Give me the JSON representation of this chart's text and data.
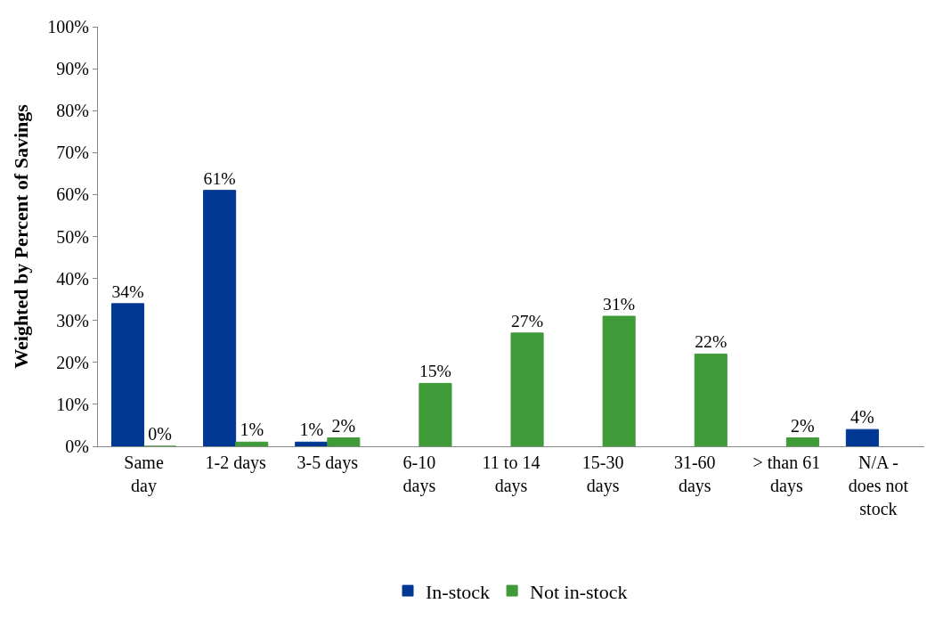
{
  "chart_data": {
    "type": "bar",
    "ylabel": "Weighted by Percent of Savings",
    "categories": [
      "Same\nday",
      "1-2 days",
      "3-5 days",
      "6-10\ndays",
      "11 to 14\ndays",
      "15-30\ndays",
      "31-60\ndays",
      "> than 61\ndays",
      "N/A -\ndoes not\nstock"
    ],
    "series": [
      {
        "name": "In-stock",
        "color": "#003893",
        "values": [
          34,
          61,
          1,
          null,
          null,
          null,
          null,
          null,
          4
        ],
        "value_labels": [
          "34%",
          "61%",
          "1%",
          null,
          null,
          null,
          null,
          null,
          "4%"
        ]
      },
      {
        "name": "Not in-stock",
        "color": "#3f9b37",
        "values": [
          0,
          1,
          2,
          15,
          27,
          31,
          22,
          2,
          null
        ],
        "value_labels": [
          "0%",
          "1%",
          "2%",
          "15%",
          "27%",
          "31%",
          "22%",
          "2%",
          null
        ]
      }
    ],
    "ylim": [
      0,
      100
    ],
    "yticks": [
      {
        "value": 0,
        "label": "0%"
      },
      {
        "value": 10,
        "label": "10%"
      },
      {
        "value": 20,
        "label": "20%"
      },
      {
        "value": 30,
        "label": "30%"
      },
      {
        "value": 40,
        "label": "40%"
      },
      {
        "value": 50,
        "label": "50%"
      },
      {
        "value": 60,
        "label": "60%"
      },
      {
        "value": 70,
        "label": "70%"
      },
      {
        "value": 80,
        "label": "80%"
      },
      {
        "value": 90,
        "label": "90%"
      },
      {
        "value": 100,
        "label": "100%"
      }
    ],
    "legend": "bottom"
  }
}
